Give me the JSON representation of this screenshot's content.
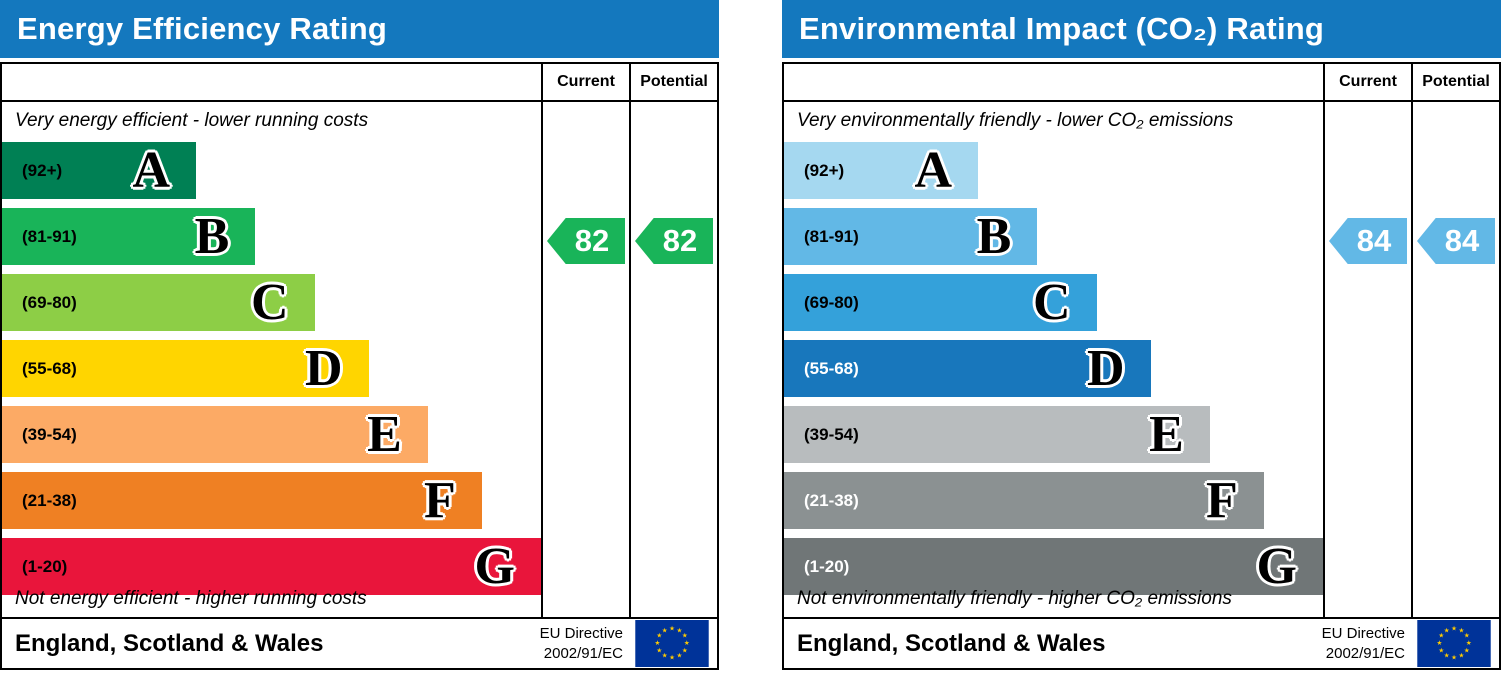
{
  "header_color": "#1478be",
  "chart_data": [
    {
      "type": "bar",
      "title": "Energy Efficiency Rating",
      "top_caption": "Very energy efficient - lower running costs",
      "bottom_caption": "Not energy efficient - higher running costs",
      "columns": {
        "current": "Current",
        "potential": "Potential"
      },
      "bands": [
        {
          "letter": "A",
          "range": "(92+)",
          "color": "#008054",
          "label_color": "#000000",
          "width_pct": 36
        },
        {
          "letter": "B",
          "range": "(81-91)",
          "color": "#19b459",
          "label_color": "#000000",
          "width_pct": 47
        },
        {
          "letter": "C",
          "range": "(69-80)",
          "color": "#8dce46",
          "label_color": "#000000",
          "width_pct": 58
        },
        {
          "letter": "D",
          "range": "(55-68)",
          "color": "#ffd500",
          "label_color": "#000000",
          "width_pct": 68
        },
        {
          "letter": "E",
          "range": "(39-54)",
          "color": "#fcaa65",
          "label_color": "#000000",
          "width_pct": 79
        },
        {
          "letter": "F",
          "range": "(21-38)",
          "color": "#ef8023",
          "label_color": "#000000",
          "width_pct": 89
        },
        {
          "letter": "G",
          "range": "(1-20)",
          "color": "#e9153b",
          "label_color": "#000000",
          "width_pct": 100
        }
      ],
      "current": {
        "value": 82,
        "band_index": 1,
        "color": "#19b459"
      },
      "potential": {
        "value": 82,
        "band_index": 1,
        "color": "#19b459"
      },
      "footer": {
        "region": "England, Scotland & Wales",
        "directive_line1": "EU Directive",
        "directive_line2": "2002/91/EC"
      }
    },
    {
      "type": "bar",
      "title": "Environmental Impact (CO₂) Rating",
      "top_caption": "Very environmentally friendly - lower CO₂ emissions",
      "bottom_caption": "Not environmentally friendly - higher CO₂ emissions",
      "columns": {
        "current": "Current",
        "potential": "Potential"
      },
      "bands": [
        {
          "letter": "A",
          "range": "(92+)",
          "color": "#a5d8f0",
          "label_color": "#000000",
          "width_pct": 36
        },
        {
          "letter": "B",
          "range": "(81-91)",
          "color": "#62b8e6",
          "label_color": "#000000",
          "width_pct": 47
        },
        {
          "letter": "C",
          "range": "(69-80)",
          "color": "#34a1da",
          "label_color": "#000000",
          "width_pct": 58
        },
        {
          "letter": "D",
          "range": "(55-68)",
          "color": "#1877bc",
          "label_color": "#ffffff",
          "width_pct": 68
        },
        {
          "letter": "E",
          "range": "(39-54)",
          "color": "#b8bcbe",
          "label_color": "#000000",
          "width_pct": 79
        },
        {
          "letter": "F",
          "range": "(21-38)",
          "color": "#8b9192",
          "label_color": "#ffffff",
          "width_pct": 89
        },
        {
          "letter": "G",
          "range": "(1-20)",
          "color": "#707677",
          "label_color": "#ffffff",
          "width_pct": 100
        }
      ],
      "current": {
        "value": 84,
        "band_index": 1,
        "color": "#62b8e6"
      },
      "potential": {
        "value": 84,
        "band_index": 1,
        "color": "#62b8e6"
      },
      "footer": {
        "region": "England, Scotland & Wales",
        "directive_line1": "EU Directive",
        "directive_line2": "2002/91/EC"
      }
    }
  ]
}
